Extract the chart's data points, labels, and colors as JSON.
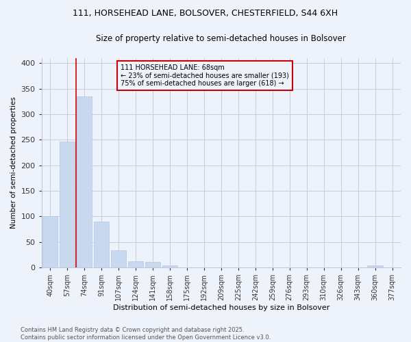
{
  "title1": "111, HORSEHEAD LANE, BOLSOVER, CHESTERFIELD, S44 6XH",
  "title2": "Size of property relative to semi-detached houses in Bolsover",
  "xlabel": "Distribution of semi-detached houses by size in Bolsover",
  "ylabel": "Number of semi-detached properties",
  "categories": [
    "40sqm",
    "57sqm",
    "74sqm",
    "91sqm",
    "107sqm",
    "124sqm",
    "141sqm",
    "158sqm",
    "175sqm",
    "192sqm",
    "209sqm",
    "225sqm",
    "242sqm",
    "259sqm",
    "276sqm",
    "293sqm",
    "310sqm",
    "326sqm",
    "343sqm",
    "360sqm",
    "377sqm"
  ],
  "values": [
    100,
    247,
    335,
    90,
    33,
    12,
    11,
    4,
    0,
    0,
    0,
    0,
    0,
    0,
    0,
    0,
    0,
    0,
    0,
    4,
    0
  ],
  "bar_color": "#c8d9ef",
  "bar_edge_color": "#b0c8e8",
  "vline_x": 1.5,
  "annotation_text": "111 HORSEHEAD LANE: 68sqm\n← 23% of semi-detached houses are smaller (193)\n75% of semi-detached houses are larger (618) →",
  "vline_color": "#cc0000",
  "annotation_box_edgecolor": "#cc0000",
  "footer_text": "Contains HM Land Registry data © Crown copyright and database right 2025.\nContains public sector information licensed under the Open Government Licence v3.0.",
  "background_color": "#eef2fb",
  "ylim": [
    0,
    410
  ],
  "yticks": [
    0,
    50,
    100,
    150,
    200,
    250,
    300,
    350,
    400
  ]
}
